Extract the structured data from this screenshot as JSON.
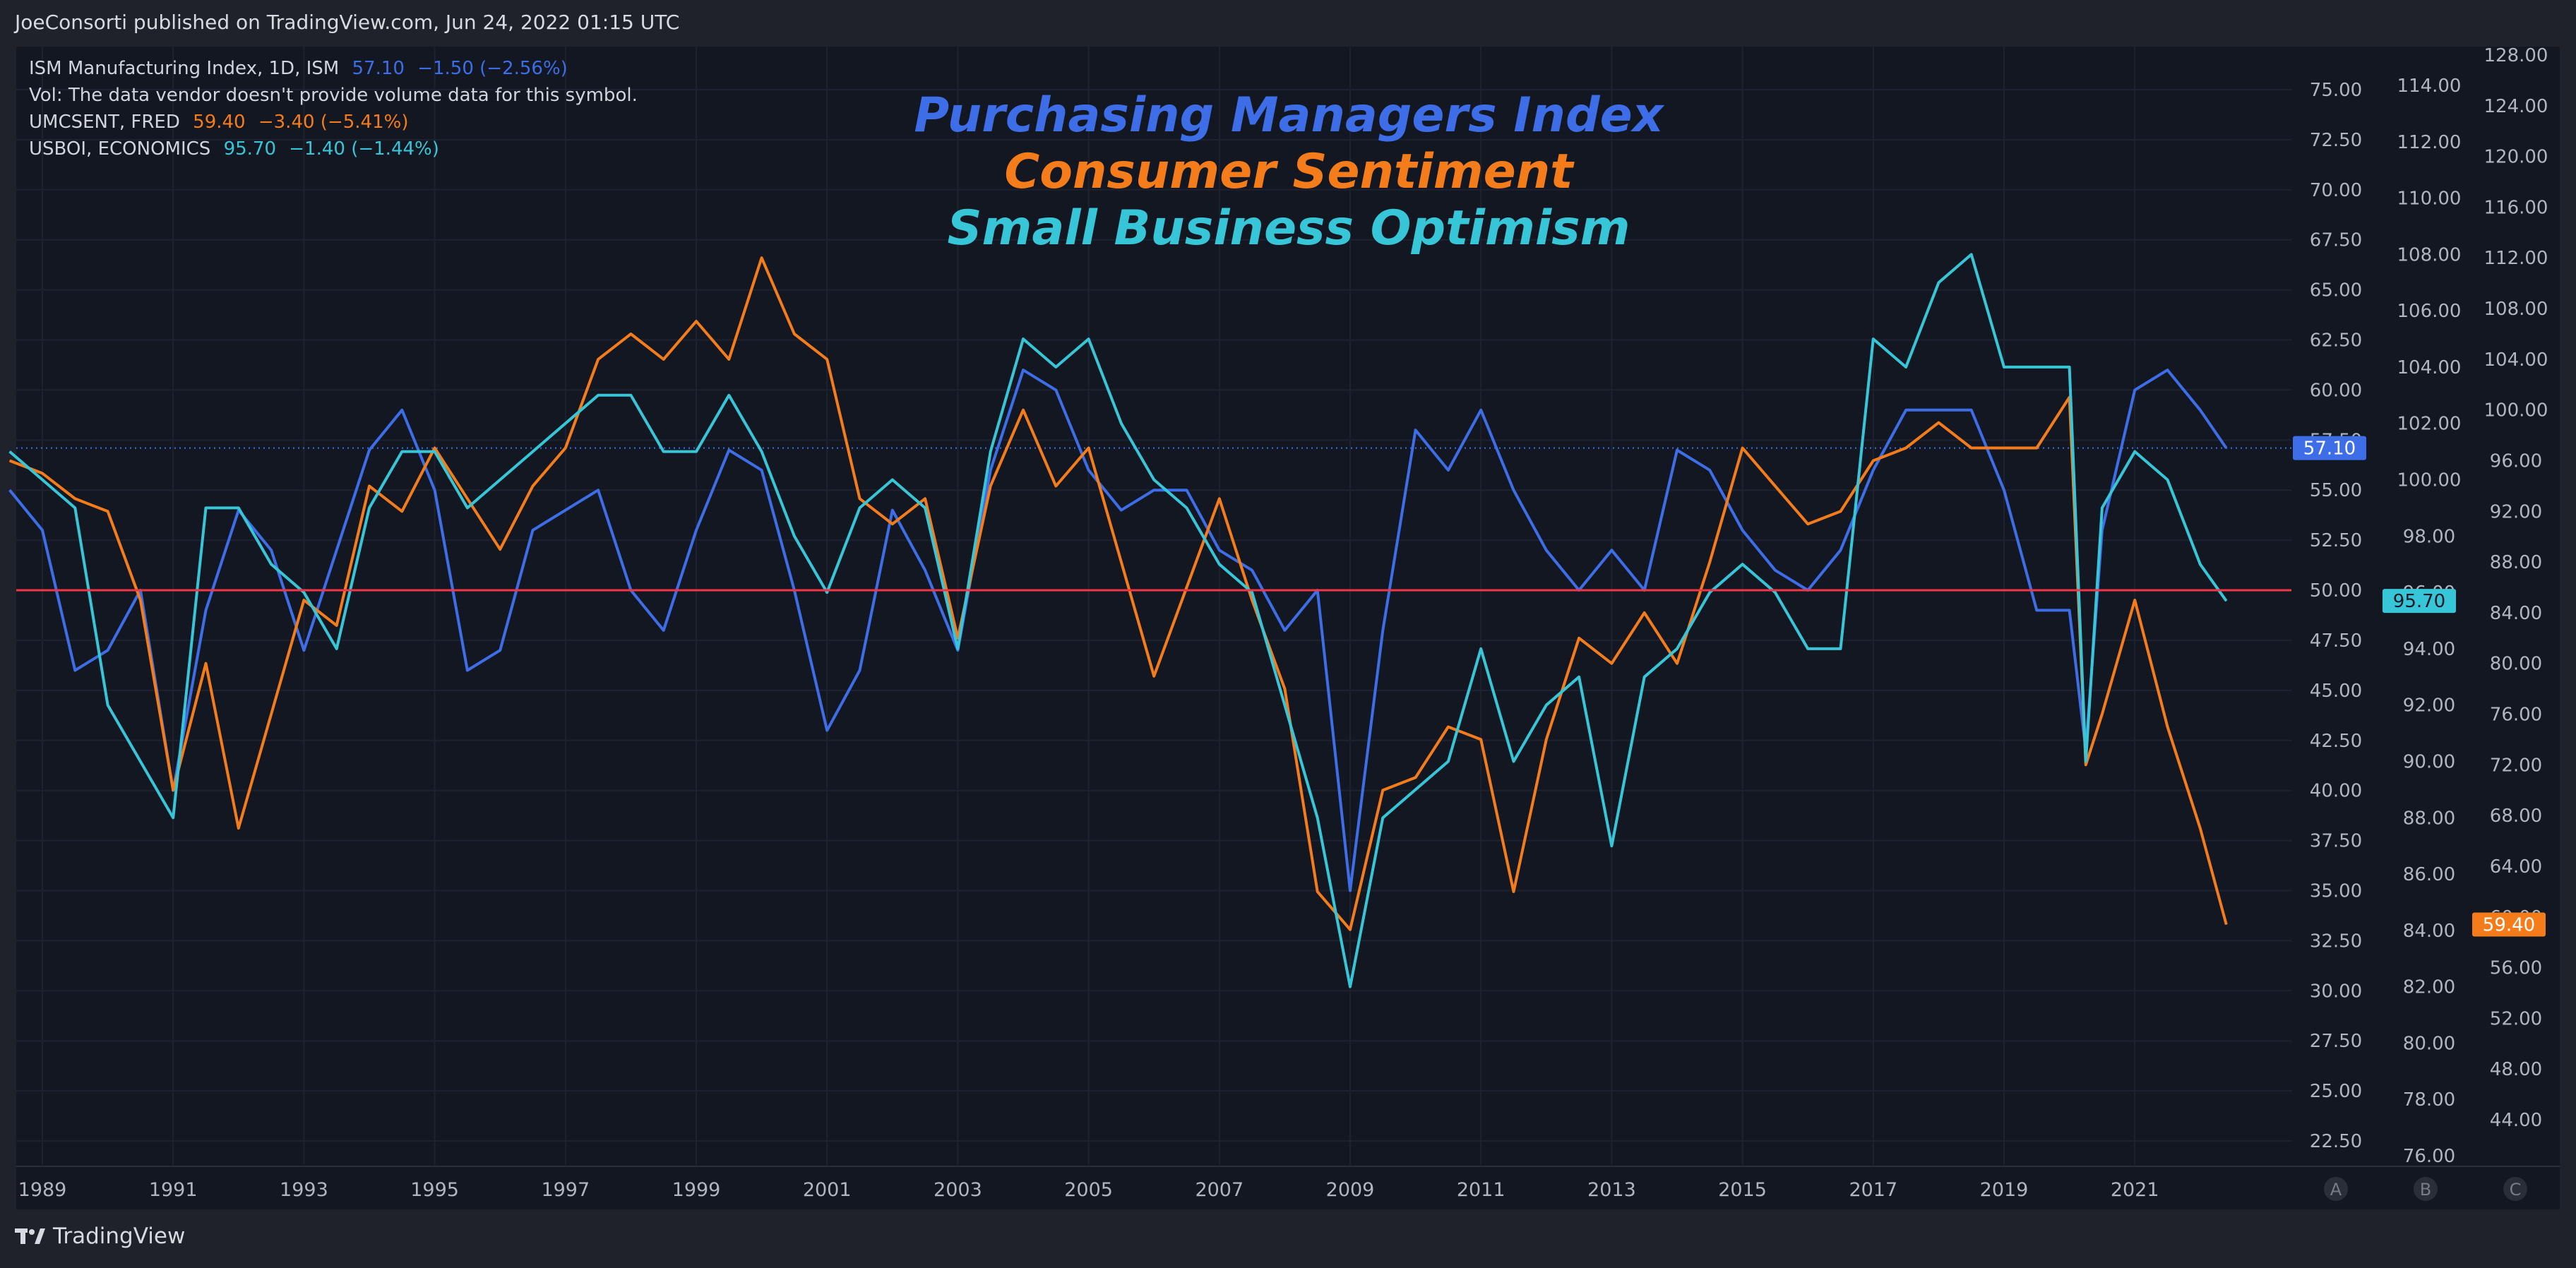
{
  "header": {
    "publisher": "JoeConsorti published on TradingView.com, Jun 24, 2022 01:15 UTC"
  },
  "footer": {
    "brand": "TradingView"
  },
  "legend": [
    {
      "name": "ISM Manufacturing Index, 1D, ISM",
      "value": "57.10",
      "change": "−1.50 (−2.56%)",
      "color": "#3d6ee8"
    },
    {
      "name": "Vol: The data vendor doesn't provide volume data for this symbol.",
      "value": "",
      "change": "",
      "color": "#d1d4dc"
    },
    {
      "name": "UMCSENT, FRED",
      "value": "59.40",
      "change": "−3.40 (−5.41%)",
      "color": "#f57c1a"
    },
    {
      "name": "USBOI, ECONOMICS",
      "value": "95.70",
      "change": "−1.40 (−1.44%)",
      "color": "#37c6d8"
    }
  ],
  "titles": [
    "Purchasing Managers Index",
    "Consumer Sentiment",
    "Small Business Optimism"
  ],
  "colors": {
    "ism": "#3d6ee8",
    "umcsent": "#f57c1a",
    "usboi": "#37c6d8",
    "reference_line": "#f23645",
    "grid": "#1e2230",
    "axis_text": "#b2b5be"
  },
  "scale_buttons": [
    "A",
    "B",
    "C"
  ],
  "chart_data": {
    "type": "line",
    "x_ticks": [
      "1989",
      "1991",
      "1993",
      "1995",
      "1997",
      "1999",
      "2001",
      "2003",
      "2005",
      "2007",
      "2009",
      "2011",
      "2013",
      "2015",
      "2017",
      "2019",
      "2021"
    ],
    "reference_line": {
      "axis": "A",
      "value": 50
    },
    "axes": {
      "A": {
        "min": 22.5,
        "max": 75,
        "ticks": [
          "75.00",
          "72.50",
          "70.00",
          "67.50",
          "65.00",
          "62.50",
          "60.00",
          "57.50",
          "55.00",
          "52.50",
          "50.00",
          "47.50",
          "45.00",
          "42.50",
          "40.00",
          "37.50",
          "35.00",
          "32.50",
          "30.00",
          "27.50",
          "25.00",
          "22.50"
        ]
      },
      "B": {
        "min": 76,
        "max": 114,
        "ticks": [
          "114.00",
          "112.00",
          "110.00",
          "108.00",
          "106.00",
          "104.00",
          "102.00",
          "100.00",
          "98.00",
          "96.00",
          "94.00",
          "92.00",
          "90.00",
          "88.00",
          "86.00",
          "84.00",
          "82.00",
          "80.00",
          "78.00",
          "76.00"
        ]
      },
      "C": {
        "min": 44,
        "max": 128,
        "ticks": [
          "128.00",
          "124.00",
          "120.00",
          "116.00",
          "112.00",
          "108.00",
          "104.00",
          "100.00",
          "96.00",
          "92.00",
          "88.00",
          "84.00",
          "80.00",
          "76.00",
          "72.00",
          "68.00",
          "64.00",
          "60.00",
          "56.00",
          "52.00",
          "48.00",
          "44.00"
        ]
      }
    },
    "last_value_labels": [
      {
        "axis": "A",
        "text": "57.10",
        "value": 57.1,
        "color": "#3d6ee8"
      },
      {
        "axis": "B",
        "text": "95.70",
        "value": 95.7,
        "color": "#37c6d8"
      },
      {
        "axis": "C",
        "text": "59.40",
        "value": 59.4,
        "color": "#f57c1a"
      }
    ],
    "series": [
      {
        "name": "ISM Manufacturing Index",
        "axis": "A",
        "color": "#3d6ee8",
        "x": [
          1988.5,
          1989,
          1989.5,
          1990,
          1990.5,
          1991,
          1991.5,
          1992,
          1992.5,
          1993,
          1993.5,
          1994,
          1994.5,
          1995,
          1995.5,
          1996,
          1996.5,
          1997,
          1997.5,
          1998,
          1998.5,
          1999,
          1999.5,
          2000,
          2000.5,
          2001,
          2001.5,
          2002,
          2002.5,
          2003,
          2003.5,
          2004,
          2004.5,
          2005,
          2005.5,
          2006,
          2006.5,
          2007,
          2007.5,
          2008,
          2008.5,
          2009,
          2009.5,
          2010,
          2010.5,
          2011,
          2011.5,
          2012,
          2012.5,
          2013,
          2013.5,
          2014,
          2014.5,
          2015,
          2015.5,
          2016,
          2016.5,
          2017,
          2017.5,
          2018,
          2018.5,
          2019,
          2019.5,
          2020,
          2020.25,
          2020.5,
          2021,
          2021.5,
          2022,
          2022.4
        ],
        "y": [
          55,
          53,
          46,
          47,
          50,
          40,
          49,
          54,
          52,
          47,
          52,
          57,
          59,
          55,
          46,
          47,
          53,
          54,
          55,
          50,
          48,
          53,
          57,
          56,
          50,
          43,
          46,
          54,
          51,
          47,
          56,
          61,
          60,
          56,
          54,
          55,
          55,
          52,
          51,
          48,
          50,
          35,
          48,
          58,
          56,
          59,
          55,
          52,
          50,
          52,
          50,
          57,
          56,
          53,
          51,
          50,
          52,
          56,
          59,
          59,
          59,
          55,
          49,
          49,
          42,
          53,
          60,
          61,
          59,
          57.1
        ]
      },
      {
        "name": "Consumer Sentiment",
        "axis": "C",
        "color": "#f57c1a",
        "x": [
          1988.5,
          1989,
          1989.5,
          1990,
          1990.5,
          1991,
          1991.5,
          1992,
          1992.5,
          1993,
          1993.5,
          1994,
          1994.5,
          1995,
          1995.5,
          1996,
          1996.5,
          1997,
          1997.5,
          1998,
          1998.5,
          1999,
          1999.5,
          2000,
          2000.5,
          2001,
          2001.5,
          2002,
          2002.5,
          2003,
          2003.5,
          2004,
          2004.5,
          2005,
          2005.5,
          2006,
          2006.5,
          2007,
          2007.5,
          2008,
          2008.5,
          2009,
          2009.5,
          2010,
          2010.5,
          2011,
          2011.5,
          2012,
          2012.5,
          2013,
          2013.5,
          2014,
          2014.5,
          2015,
          2015.5,
          2016,
          2016.5,
          2017,
          2017.5,
          2018,
          2018.5,
          2019,
          2019.5,
          2020,
          2020.25,
          2020.5,
          2021,
          2021.5,
          2022,
          2022.4
        ],
        "y": [
          96,
          95,
          93,
          92,
          85,
          70,
          80,
          67,
          76,
          85,
          83,
          94,
          92,
          97,
          93,
          89,
          94,
          97,
          104,
          106,
          104,
          107,
          104,
          112,
          106,
          104,
          93,
          91,
          93,
          82,
          94,
          100,
          94,
          97,
          88,
          79,
          86,
          93,
          85,
          78,
          62,
          59,
          70,
          71,
          75,
          74,
          62,
          74,
          82,
          80,
          84,
          80,
          88,
          97,
          94,
          91,
          92,
          96,
          97,
          99,
          97,
          97,
          97,
          101,
          72,
          76,
          85,
          75,
          67,
          59.4
        ]
      },
      {
        "name": "Small Business Optimism",
        "axis": "B",
        "color": "#37c6d8",
        "x": [
          1988.5,
          1989,
          1989.5,
          1990,
          1990.5,
          1991,
          1991.5,
          1992,
          1992.5,
          1993,
          1993.5,
          1994,
          1994.5,
          1995,
          1995.5,
          1996,
          1996.5,
          1997,
          1997.5,
          1998,
          1998.5,
          1999,
          1999.5,
          2000,
          2000.5,
          2001,
          2001.5,
          2002,
          2002.5,
          2003,
          2003.5,
          2004,
          2004.5,
          2005,
          2005.5,
          2006,
          2006.5,
          2007,
          2007.5,
          2008,
          2008.5,
          2009,
          2009.5,
          2010,
          2010.5,
          2011,
          2011.5,
          2012,
          2012.5,
          2013,
          2013.5,
          2014,
          2014.5,
          2015,
          2015.5,
          2016,
          2016.5,
          2017,
          2017.5,
          2018,
          2018.5,
          2019,
          2019.5,
          2020,
          2020.25,
          2020.5,
          2021,
          2021.5,
          2022,
          2022.4
        ],
        "y": [
          101,
          100,
          99,
          92,
          90,
          88,
          99,
          99,
          97,
          96,
          94,
          99,
          101,
          101,
          99,
          100,
          101,
          102,
          103,
          103,
          101,
          101,
          103,
          101,
          98,
          96,
          99,
          100,
          99,
          94,
          101,
          105,
          104,
          105,
          102,
          100,
          99,
          97,
          96,
          92,
          88,
          82,
          88,
          89,
          90,
          94,
          90,
          92,
          93,
          87,
          93,
          94,
          96,
          97,
          96,
          94,
          94,
          105,
          104,
          107,
          108,
          104,
          104,
          104,
          90,
          99,
          101,
          100,
          97,
          95.7
        ]
      }
    ]
  }
}
